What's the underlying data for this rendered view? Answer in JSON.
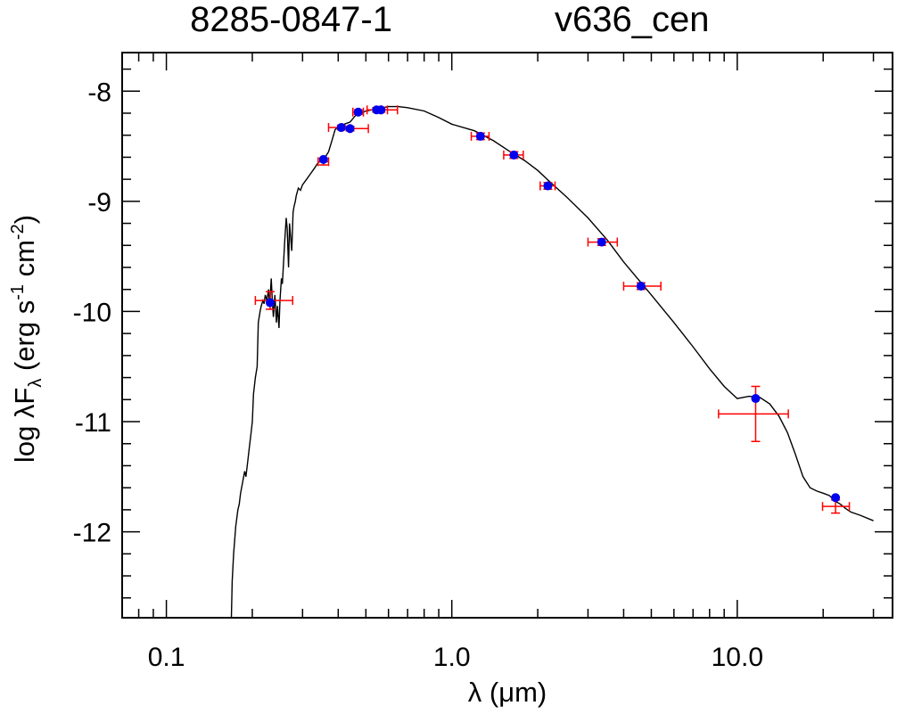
{
  "chart_data": {
    "type": "scatter",
    "title_left": "8285-0847-1",
    "title_right": "v636_cen",
    "xlabel": "λ (μm)",
    "ylabel": "log λF_λ (erg s^-1 cm^-2)",
    "ylabel_parts": {
      "prefix": "log λF",
      "sub": "λ",
      "mid1": " (erg s",
      "sup1": "-1",
      "mid2": " cm",
      "sup2": "-2",
      "suffix": ")"
    },
    "x_scale": "log",
    "xlim": [
      0.07,
      35
    ],
    "ylim": [
      -12.78,
      -7.65
    ],
    "x_ticks": [
      {
        "value": 0.1,
        "label": "0.1"
      },
      {
        "value": 1.0,
        "label": "1.0"
      },
      {
        "value": 10.0,
        "label": "10.0"
      }
    ],
    "y_ticks": [
      {
        "value": -8,
        "label": "-8"
      },
      {
        "value": -9,
        "label": "-9"
      },
      {
        "value": -10,
        "label": "-10"
      },
      {
        "value": -11,
        "label": "-11"
      },
      {
        "value": -12,
        "label": "-12"
      }
    ],
    "grid": false,
    "model_spectrum": {
      "color": "#000000",
      "x": [
        0.169,
        0.17,
        0.172,
        0.175,
        0.178,
        0.18,
        0.182,
        0.185,
        0.188,
        0.19,
        0.193,
        0.195,
        0.198,
        0.2,
        0.202,
        0.205,
        0.208,
        0.21,
        0.213,
        0.215,
        0.218,
        0.22,
        0.222,
        0.225,
        0.228,
        0.23,
        0.233,
        0.235,
        0.237,
        0.24,
        0.243,
        0.245,
        0.248,
        0.25,
        0.253,
        0.255,
        0.258,
        0.26,
        0.263,
        0.265,
        0.268,
        0.27,
        0.273,
        0.275,
        0.278,
        0.28,
        0.283,
        0.285,
        0.29,
        0.295,
        0.3,
        0.31,
        0.32,
        0.33,
        0.34,
        0.35,
        0.36,
        0.37,
        0.38,
        0.39,
        0.4,
        0.42,
        0.44,
        0.46,
        0.48,
        0.5,
        0.55,
        0.6,
        0.65,
        0.7,
        0.8,
        0.9,
        1.0,
        1.2,
        1.4,
        1.6,
        1.8,
        2.0,
        2.2,
        2.5,
        3.0,
        3.5,
        4.0,
        5.0,
        6.0,
        7.0,
        8.0,
        9.0,
        10.0,
        10.5,
        11.0,
        12.0,
        13.0,
        14.0,
        15.0,
        16.0,
        17.0,
        18.0,
        19.0,
        20.0,
        21.0,
        22.0,
        23.0,
        24.0,
        25.0,
        27.0,
        30.0
      ],
      "y": [
        -12.78,
        -12.45,
        -12.2,
        -11.95,
        -11.8,
        -11.75,
        -11.65,
        -11.55,
        -11.45,
        -11.5,
        -11.35,
        -11.25,
        -11.1,
        -11.0,
        -10.75,
        -10.6,
        -10.5,
        -10.1,
        -10.0,
        -9.95,
        -9.9,
        -9.93,
        -9.85,
        -9.9,
        -9.8,
        -9.95,
        -9.7,
        -9.9,
        -10.05,
        -9.85,
        -10.1,
        -9.95,
        -10.15,
        -9.9,
        -9.7,
        -9.75,
        -9.5,
        -9.35,
        -9.15,
        -9.25,
        -9.6,
        -9.2,
        -9.35,
        -9.45,
        -9.1,
        -9.05,
        -9.0,
        -8.95,
        -8.88,
        -8.9,
        -8.85,
        -8.8,
        -8.75,
        -8.7,
        -8.65,
        -8.63,
        -8.6,
        -8.55,
        -8.45,
        -8.35,
        -8.32,
        -8.3,
        -8.28,
        -8.22,
        -8.2,
        -8.18,
        -8.16,
        -8.14,
        -8.14,
        -8.15,
        -8.18,
        -8.24,
        -8.3,
        -8.36,
        -8.45,
        -8.55,
        -8.63,
        -8.72,
        -8.82,
        -8.95,
        -9.15,
        -9.35,
        -9.55,
        -9.85,
        -10.1,
        -10.32,
        -10.52,
        -10.68,
        -10.79,
        -10.78,
        -10.77,
        -10.78,
        -10.84,
        -10.95,
        -11.1,
        -11.3,
        -11.5,
        -11.6,
        -11.63,
        -11.65,
        -11.67,
        -11.72,
        -11.75,
        -11.79,
        -11.82,
        -11.85,
        -11.9
      ]
    },
    "photometry": {
      "marker_color": "#0000ee",
      "error_color": "#ff0000",
      "points": [
        {
          "x": 0.231,
          "y": -9.9,
          "y_model": -9.92,
          "xerr_lo": 0.026,
          "xerr_hi": 0.046,
          "yerr": 0.08
        },
        {
          "x": 0.355,
          "y": -8.64,
          "y_model": -8.62,
          "xerr_lo": 0.015,
          "xerr_hi": 0.015,
          "yerr": 0.03
        },
        {
          "x": 0.41,
          "y": -8.33,
          "y_model": -8.33,
          "xerr_lo": 0.04,
          "xerr_hi": 0.0,
          "yerr": 0.02
        },
        {
          "x": 0.44,
          "y": -8.34,
          "y_model": -8.34,
          "xerr_lo": 0.0,
          "xerr_hi": 0.07,
          "yerr": 0.02
        },
        {
          "x": 0.47,
          "y": -8.19,
          "y_model": -8.19,
          "xerr_lo": 0.02,
          "xerr_hi": 0.02,
          "yerr": 0.02
        },
        {
          "x": 0.545,
          "y": -8.17,
          "y_model": -8.17,
          "xerr_lo": 0.04,
          "xerr_hi": 0.05,
          "yerr": 0.02
        },
        {
          "x": 0.565,
          "y": -8.17,
          "y_model": -8.17,
          "xerr_lo": 0.0,
          "xerr_hi": 0.08,
          "yerr": 0.02
        },
        {
          "x": 1.26,
          "y": -8.41,
          "y_model": -8.41,
          "xerr_lo": 0.09,
          "xerr_hi": 0.09,
          "yerr": 0.03
        },
        {
          "x": 1.65,
          "y": -8.58,
          "y_model": -8.58,
          "xerr_lo": 0.13,
          "xerr_hi": 0.13,
          "yerr": 0.03
        },
        {
          "x": 2.17,
          "y": -8.86,
          "y_model": -8.86,
          "xerr_lo": 0.13,
          "xerr_hi": 0.13,
          "yerr": 0.03
        },
        {
          "x": 3.35,
          "y": -9.37,
          "y_model": -9.37,
          "xerr_lo": 0.35,
          "xerr_hi": 0.45,
          "yerr": 0.03
        },
        {
          "x": 4.6,
          "y": -9.77,
          "y_model": -9.77,
          "xerr_lo": 0.6,
          "xerr_hi": 0.8,
          "yerr": 0.03
        },
        {
          "x": 11.6,
          "y": -10.93,
          "y_model": -10.79,
          "xerr_lo": 3.0,
          "xerr_hi": 3.5,
          "yerr": 0.25
        },
        {
          "x": 22.1,
          "y": -11.77,
          "y_model": -11.69,
          "xerr_lo": 2.2,
          "xerr_hi": 2.6,
          "yerr": 0.06
        }
      ]
    }
  }
}
